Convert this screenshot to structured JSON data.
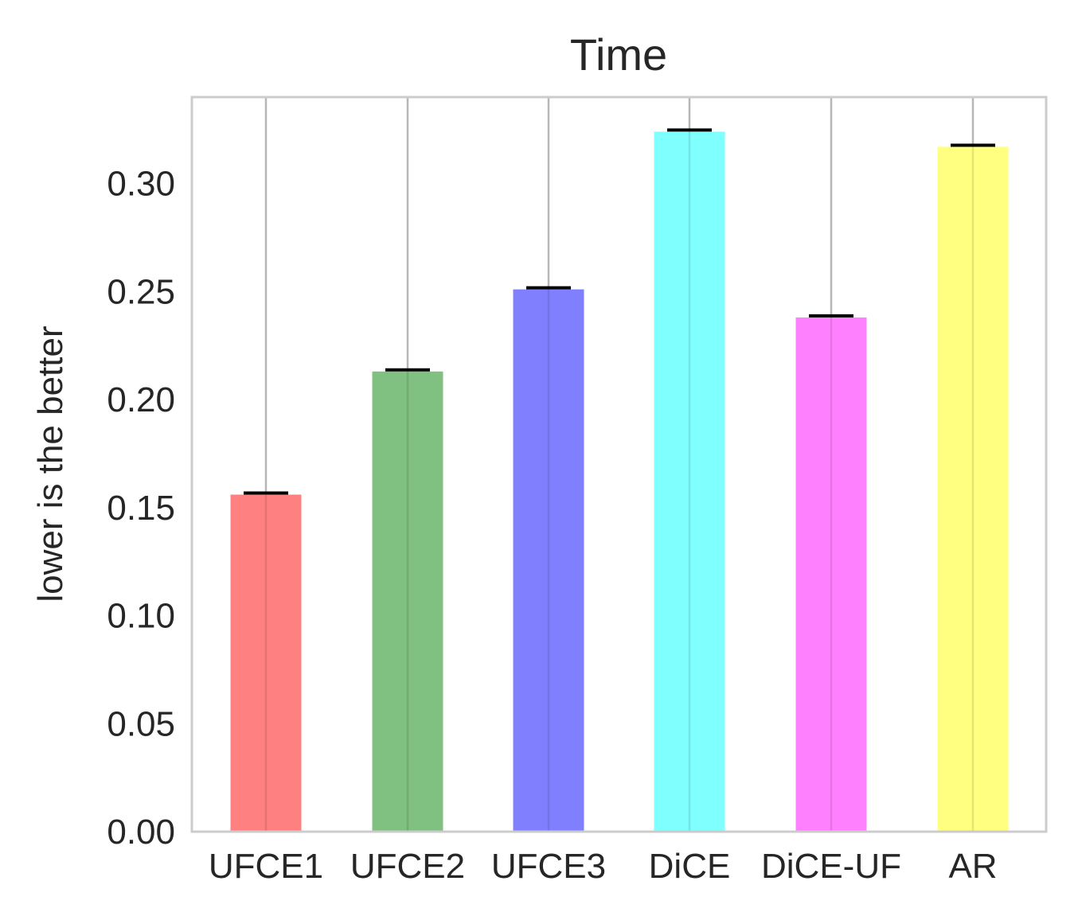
{
  "chart_data": {
    "type": "bar",
    "title": "Time",
    "xlabel": "",
    "ylabel": "lower is the better",
    "categories": [
      "UFCE1",
      "UFCE2",
      "UFCE3",
      "DiCE",
      "DiCE-UF",
      "AR"
    ],
    "values": [
      0.156,
      0.213,
      0.251,
      0.324,
      0.238,
      0.317
    ],
    "colors": [
      "#ff8080",
      "#80c080",
      "#8080ff",
      "#80ffff",
      "#ff80ff",
      "#ffff80"
    ],
    "error_color": "#000000",
    "ylim": [
      0,
      0.34
    ],
    "yticks": [
      0.0,
      0.05,
      0.1,
      0.15,
      0.2,
      0.25,
      0.3
    ],
    "ytick_labels": [
      "0.00",
      "0.05",
      "0.10",
      "0.15",
      "0.20",
      "0.25",
      "0.30"
    ],
    "grid": "x-only",
    "legend": "none"
  }
}
